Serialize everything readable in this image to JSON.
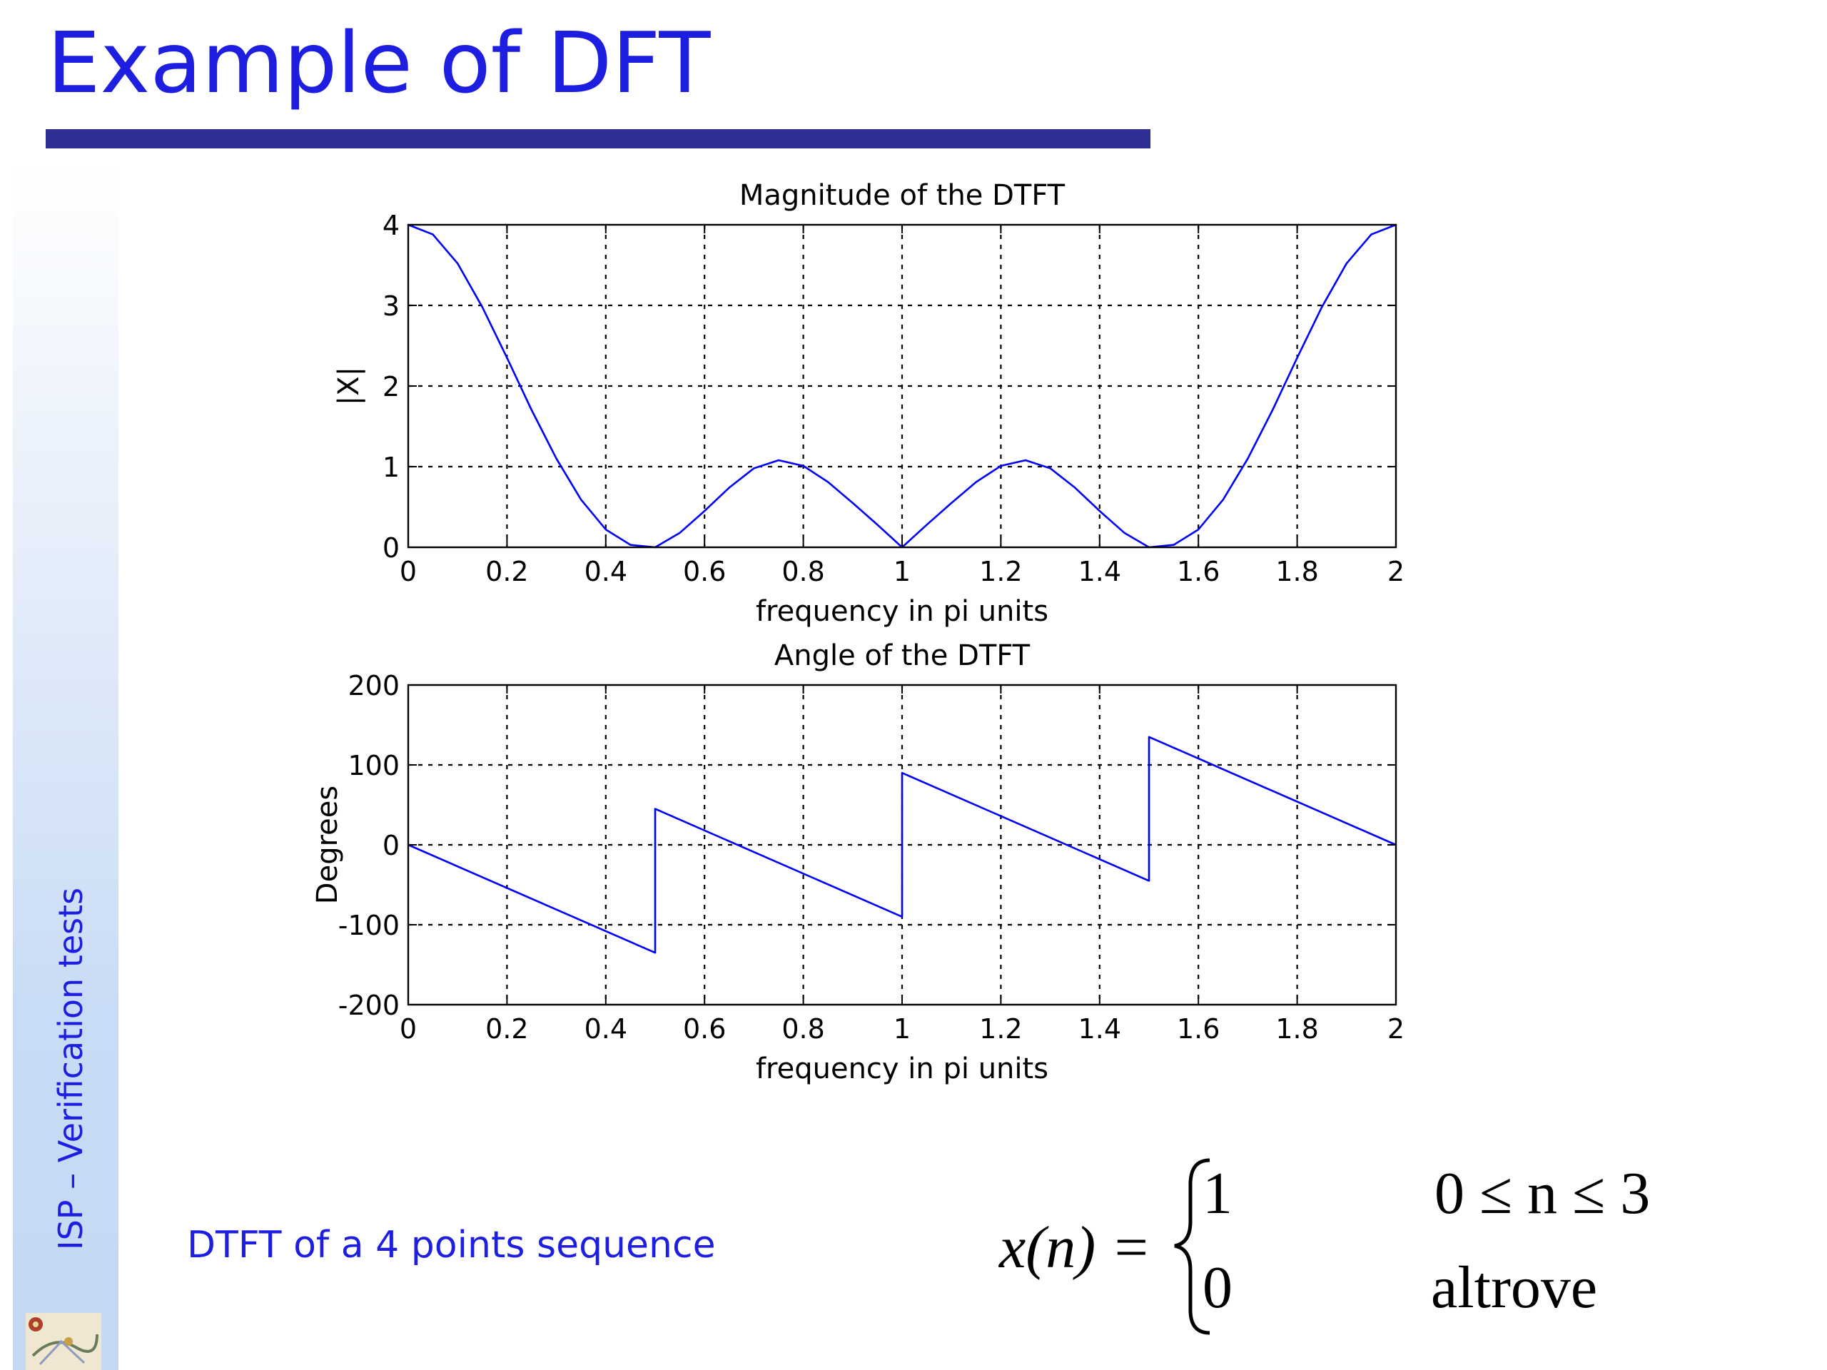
{
  "slide": {
    "title": "Example of DFT",
    "side_label": "ISP – Verification tests",
    "caption": "DTFT of a 4 points sequence"
  },
  "formula": {
    "lhs": "x(n) =",
    "case1_value": "1",
    "case1_condition": "0 ≤ n ≤ 3",
    "case2_value": "0",
    "case2_condition": "altrove"
  },
  "colors": {
    "title": "#1e1ee0",
    "title_bar": "#2e2e93",
    "curve": "#0000ff"
  },
  "chart_data": [
    {
      "type": "line",
      "title": "Magnitude of the DTFT",
      "xlabel": "frequency in pi units",
      "ylabel": "|X|",
      "xlim": [
        0,
        2
      ],
      "ylim": [
        0,
        4
      ],
      "xticks": [
        0,
        0.2,
        0.4,
        0.6,
        0.8,
        1,
        1.2,
        1.4,
        1.6,
        1.8,
        2
      ],
      "yticks": [
        0,
        1,
        2,
        3,
        4
      ],
      "xtick_labels": [
        "0",
        "0.2",
        "0.4",
        "0.6",
        "0.8",
        "1",
        "1.2",
        "1.4",
        "1.6",
        "1.8",
        "2"
      ],
      "ytick_labels": [
        "0",
        "1",
        "2",
        "3",
        "4"
      ],
      "grid": true,
      "series": [
        {
          "x": [
            0,
            0.05,
            0.1,
            0.15,
            0.2,
            0.25,
            0.3,
            0.35,
            0.4,
            0.45,
            0.5,
            0.55,
            0.6,
            0.65,
            0.7,
            0.75,
            0.8,
            0.85,
            0.9,
            0.95,
            1,
            1.05,
            1.1,
            1.15,
            1.2,
            1.25,
            1.3,
            1.35,
            1.4,
            1.45,
            1.5,
            1.55,
            1.6,
            1.65,
            1.7,
            1.75,
            1.8,
            1.85,
            1.9,
            1.95,
            2
          ],
          "y": [
            4,
            3.88,
            3.52,
            2.98,
            2.35,
            1.7,
            1.1,
            0.59,
            0.22,
            0.03,
            0,
            0.18,
            0.45,
            0.74,
            0.98,
            1.08,
            1.01,
            0.81,
            0.55,
            0.28,
            0,
            0.28,
            0.55,
            0.81,
            1.01,
            1.08,
            0.98,
            0.74,
            0.45,
            0.18,
            0,
            0.03,
            0.22,
            0.59,
            1.1,
            1.7,
            2.35,
            2.98,
            3.52,
            3.88,
            4
          ]
        }
      ]
    },
    {
      "type": "line",
      "title": "Angle of the DTFT",
      "xlabel": "frequency in pi units",
      "ylabel": "Degrees",
      "xlim": [
        0,
        2
      ],
      "ylim": [
        -200,
        200
      ],
      "xticks": [
        0,
        0.2,
        0.4,
        0.6,
        0.8,
        1,
        1.2,
        1.4,
        1.6,
        1.8,
        2
      ],
      "yticks": [
        -200,
        -100,
        0,
        100,
        200
      ],
      "xtick_labels": [
        "0",
        "0.2",
        "0.4",
        "0.6",
        "0.8",
        "1",
        "1.2",
        "1.4",
        "1.6",
        "1.8",
        "2"
      ],
      "ytick_labels": [
        "-200",
        "-100",
        "0",
        "100",
        "200"
      ],
      "grid": true,
      "series": [
        {
          "x": [
            0,
            0.5,
            0.5,
            1,
            1,
            1.5,
            1.5,
            2
          ],
          "y": [
            0,
            -135,
            45,
            -90,
            90,
            -45,
            135,
            0
          ]
        }
      ]
    }
  ]
}
